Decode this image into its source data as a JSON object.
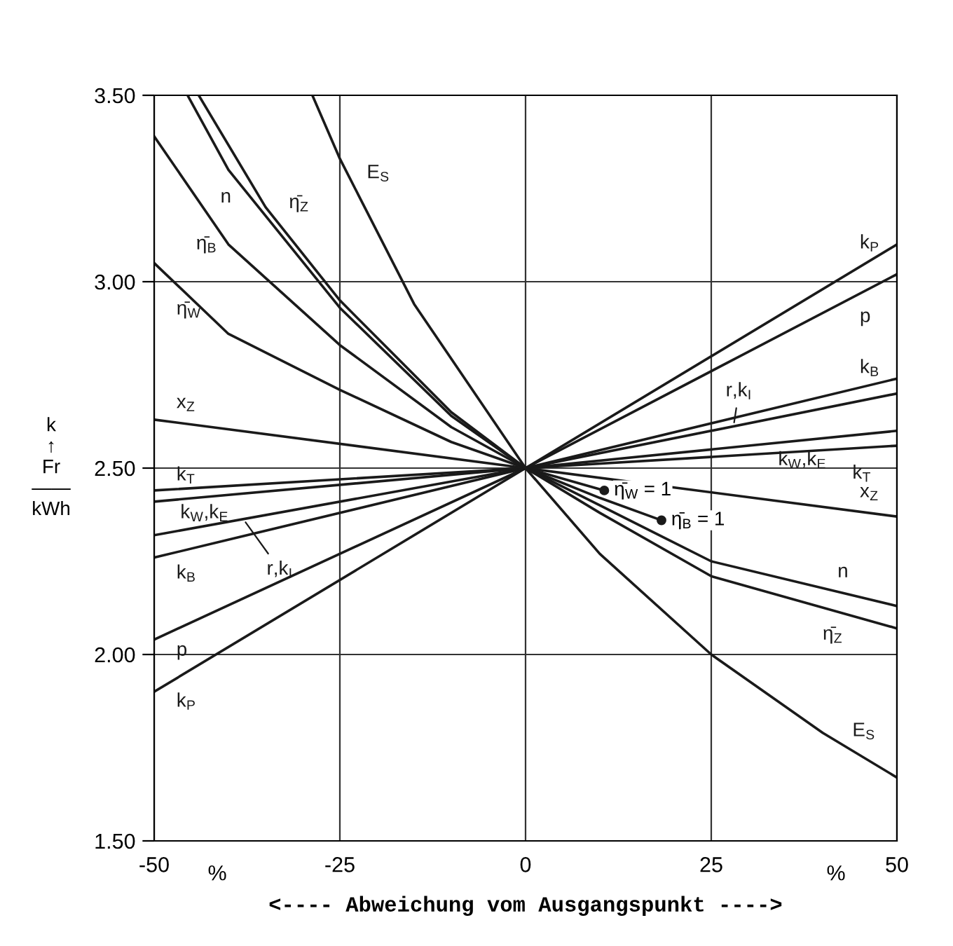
{
  "chart_data": {
    "type": "line",
    "xlabel": "<---- Abweichung vom Ausgangspunkt ---->",
    "ylabel": "k\n↑\nFr\n――\nkWh",
    "xlim": [
      -50,
      50
    ],
    "ylim": [
      1.5,
      3.5
    ],
    "xticks": [
      -50,
      -25,
      0,
      25,
      50
    ],
    "yticks": [
      {
        "value": 1.5,
        "label": "1.50"
      },
      {
        "value": 2.0,
        "label": "2.00"
      },
      {
        "value": 2.5,
        "label": "2.50"
      },
      {
        "value": 3.0,
        "label": "3.00"
      },
      {
        "value": 3.5,
        "label": "3.50"
      }
    ],
    "grid": true,
    "marker": "none",
    "line_style": "solid",
    "series": [
      {
        "name": "k$_{P}$",
        "color": "#1a1a1a",
        "x": [
          -50,
          0,
          50
        ],
        "values": [
          1.9,
          2.5,
          3.1
        ]
      },
      {
        "name": "p",
        "color": "#1a1a1a",
        "x": [
          -50,
          0,
          50
        ],
        "values": [
          2.04,
          2.5,
          3.02
        ]
      },
      {
        "name": "k$_{B}$",
        "color": "#1a1a1a",
        "x": [
          -50,
          0,
          50
        ],
        "values": [
          2.26,
          2.5,
          2.74
        ]
      },
      {
        "name": "r,k$_{I}$",
        "color": "#1a1a1a",
        "x": [
          -50,
          0,
          50
        ],
        "values": [
          2.32,
          2.5,
          2.7
        ]
      },
      {
        "name": "k$_{W}$,k$_{E}$",
        "color": "#1a1a1a",
        "x": [
          -50,
          0,
          50
        ],
        "values": [
          2.41,
          2.5,
          2.6
        ]
      },
      {
        "name": "k$_{T}$",
        "color": "#1a1a1a",
        "x": [
          -50,
          0,
          50
        ],
        "values": [
          2.44,
          2.5,
          2.56
        ]
      },
      {
        "name": "x$_{Z}$",
        "color": "#1a1a1a",
        "x": [
          -50,
          0,
          50
        ],
        "values": [
          2.63,
          2.5,
          2.37
        ]
      },
      {
        "name": "η̄$_{W}$",
        "color": "#1a1a1a",
        "x": [
          -50,
          -40,
          -25,
          -10,
          0,
          10.6
        ],
        "values": [
          3.05,
          2.86,
          2.71,
          2.57,
          2.5,
          2.44
        ]
      },
      {
        "name": "η̄$_{B}$",
        "color": "#1a1a1a",
        "x": [
          -50,
          -40,
          -25,
          -10,
          0,
          10,
          18.3
        ],
        "values": [
          3.39,
          3.1,
          2.83,
          2.61,
          2.5,
          2.42,
          2.36
        ]
      },
      {
        "name": "n",
        "color": "#1a1a1a",
        "x": [
          -45.5,
          -40,
          -25,
          -10,
          0,
          10,
          25,
          50
        ],
        "values": [
          3.5,
          3.3,
          2.93,
          2.64,
          2.5,
          2.4,
          2.25,
          2.13
        ]
      },
      {
        "name": "η̄$_{Z}$",
        "color": "#1a1a1a",
        "x": [
          -44,
          -35,
          -25,
          -10,
          0,
          10,
          25,
          50
        ],
        "values": [
          3.5,
          3.2,
          2.95,
          2.65,
          2.5,
          2.38,
          2.21,
          2.07
        ]
      },
      {
        "name": "E$_{S}$",
        "color": "#1a1a1a",
        "x": [
          -28.7,
          -25,
          -15,
          0,
          10,
          25,
          40,
          50
        ],
        "values": [
          3.5,
          3.33,
          2.94,
          2.5,
          2.27,
          2.0,
          1.79,
          1.67
        ]
      }
    ],
    "annotations": [
      "%",
      "%",
      {
        "text": "η̄$_{W}$ = 1",
        "x": 10.6,
        "y": 2.44
      },
      {
        "text": "η̄$_{B}$ = 1",
        "x": 18.3,
        "y": 2.36
      }
    ]
  }
}
